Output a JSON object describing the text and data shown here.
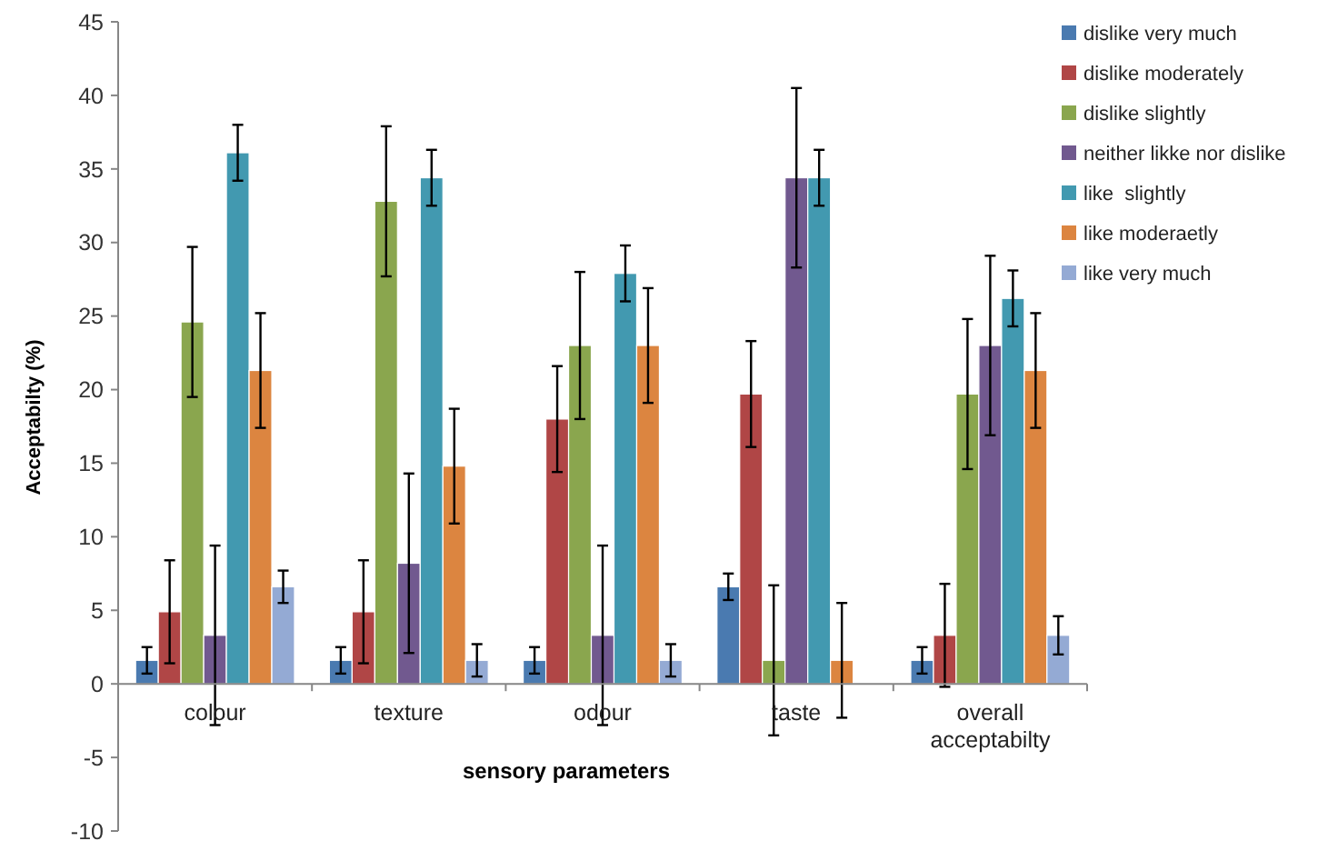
{
  "chart_data": {
    "type": "bar",
    "xlabel": "sensory parameters",
    "ylabel": "Acceptabilty (%)",
    "categories": [
      "colour",
      "texture",
      "odour",
      "taste",
      "overall acceptabilty"
    ],
    "ylim": [
      -10,
      45
    ],
    "yticks": [
      -10,
      -5,
      0,
      5,
      10,
      15,
      20,
      25,
      30,
      35,
      40,
      45
    ],
    "grid": false,
    "legend": "top right",
    "series": [
      {
        "name": "dislike very much",
        "color": "#4a7ab0",
        "values": [
          1.6,
          1.6,
          1.6,
          6.6,
          1.6
        ],
        "errors": [
          0.9,
          0.9,
          0.9,
          0.9,
          0.9
        ]
      },
      {
        "name": "dislike moderately",
        "color": "#b04646",
        "values": [
          4.9,
          4.9,
          18.0,
          19.7,
          3.3
        ],
        "errors": [
          3.5,
          3.5,
          3.6,
          3.6,
          3.5
        ]
      },
      {
        "name": "dislike slightly",
        "color": "#8aa64e",
        "values": [
          24.6,
          32.8,
          23.0,
          1.6,
          19.7
        ],
        "errors": [
          5.1,
          5.1,
          5.0,
          5.1,
          5.1
        ]
      },
      {
        "name": "neither likke nor dislike",
        "color": "#71598f",
        "values": [
          3.3,
          8.2,
          3.3,
          34.4,
          23.0
        ],
        "errors": [
          6.1,
          6.1,
          6.1,
          6.1,
          6.1
        ]
      },
      {
        "name": "like  slightly",
        "color": "#4299b0",
        "values": [
          36.1,
          34.4,
          27.9,
          34.4,
          26.2
        ],
        "errors": [
          1.9,
          1.9,
          1.9,
          1.9,
          1.9
        ]
      },
      {
        "name": "like moderaetly",
        "color": "#dc8540",
        "values": [
          21.3,
          14.8,
          23.0,
          1.6,
          21.3
        ],
        "errors": [
          3.9,
          3.9,
          3.9,
          3.9,
          3.9
        ]
      },
      {
        "name": "like very much",
        "color": "#94aad4",
        "values": [
          6.6,
          1.6,
          1.6,
          0,
          3.3
        ],
        "errors": [
          1.1,
          1.1,
          1.1,
          null,
          1.3
        ]
      }
    ]
  }
}
